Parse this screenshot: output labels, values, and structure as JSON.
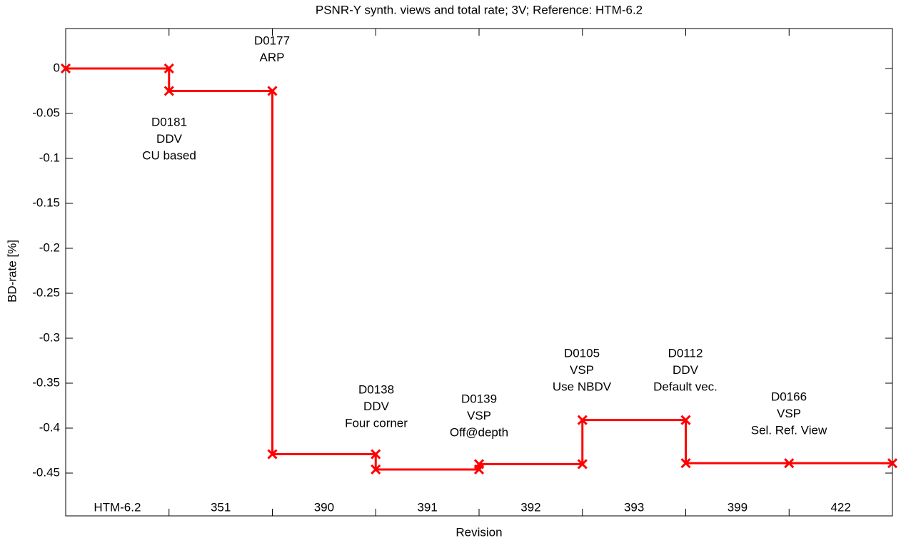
{
  "chart_data": {
    "type": "line",
    "title": "PSNR-Y synth. views and total rate; 3V; Reference: HTM-6.2",
    "xlabel": "Revision",
    "ylabel": "BD-rate [%]",
    "x": [
      0,
      1,
      1,
      2,
      2,
      3,
      3,
      4,
      4,
      5,
      5,
      6,
      6,
      7,
      8
    ],
    "series": [
      {
        "name": "BD-rate",
        "color": "#ff0000",
        "values": [
          0,
          0,
          -0.025,
          -0.025,
          -0.429,
          -0.429,
          -0.446,
          -0.446,
          -0.44,
          -0.44,
          -0.391,
          -0.391,
          -0.439,
          -0.439,
          -0.439
        ]
      }
    ],
    "xlim": [
      0,
      8
    ],
    "xticks": [
      0,
      1,
      2,
      3,
      4,
      5,
      6,
      7,
      8
    ],
    "ylim": [
      -0.4976,
      0.0444
    ],
    "yticks": [
      0,
      -0.05,
      -0.1,
      -0.15,
      -0.2,
      -0.25,
      -0.3,
      -0.35,
      -0.4,
      -0.45
    ],
    "revisions": [
      "HTM-6.2",
      "351",
      "390",
      "391",
      "392",
      "393",
      "399",
      "422"
    ],
    "annotations": [
      {
        "lines": [
          "D0181",
          "DDV",
          "CU based"
        ]
      },
      {
        "lines": [
          "D0177",
          "ARP"
        ]
      },
      {
        "lines": [
          "D0138",
          "DDV",
          "Four corner"
        ]
      },
      {
        "lines": [
          "D0139",
          "VSP",
          "Off@depth"
        ]
      },
      {
        "lines": [
          "D0105",
          "VSP",
          "Use NBDV"
        ]
      },
      {
        "lines": [
          "D0112",
          "DDV",
          "Default vec."
        ]
      },
      {
        "lines": [
          "D0166",
          "VSP",
          "Sel. Ref. View"
        ]
      }
    ]
  }
}
